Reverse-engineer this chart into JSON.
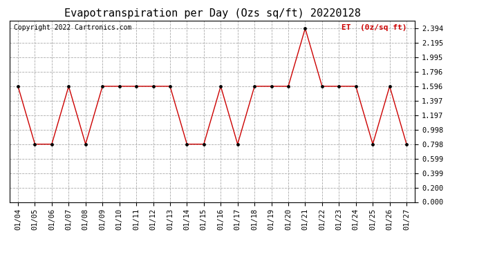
{
  "title": "Evapotranspiration per Day (Ozs sq/ft) 20220128",
  "legend_label": "ET  (0z/sq ft)",
  "copyright": "Copyright 2022 Cartronics.com",
  "dates": [
    "01/04",
    "01/05",
    "01/06",
    "01/07",
    "01/08",
    "01/09",
    "01/10",
    "01/11",
    "01/12",
    "01/13",
    "01/14",
    "01/15",
    "01/16",
    "01/17",
    "01/18",
    "01/19",
    "01/20",
    "01/21",
    "01/22",
    "01/23",
    "01/24",
    "01/25",
    "01/26",
    "01/27"
  ],
  "values": [
    1.596,
    0.798,
    0.798,
    1.596,
    0.798,
    1.596,
    1.596,
    1.596,
    1.596,
    1.596,
    0.798,
    0.798,
    1.596,
    0.798,
    1.596,
    1.596,
    1.596,
    2.394,
    1.596,
    1.596,
    1.596,
    0.798,
    1.596,
    0.798
  ],
  "line_color": "#cc0000",
  "marker_color": "#000000",
  "background_color": "#ffffff",
  "grid_color": "#aaaaaa",
  "yticks": [
    0.0,
    0.2,
    0.399,
    0.599,
    0.798,
    0.998,
    1.197,
    1.397,
    1.596,
    1.796,
    1.995,
    2.195,
    2.394
  ],
  "ylim": [
    0.0,
    2.5
  ],
  "title_fontsize": 11,
  "legend_fontsize": 8,
  "copyright_fontsize": 7,
  "tick_fontsize": 7.5
}
